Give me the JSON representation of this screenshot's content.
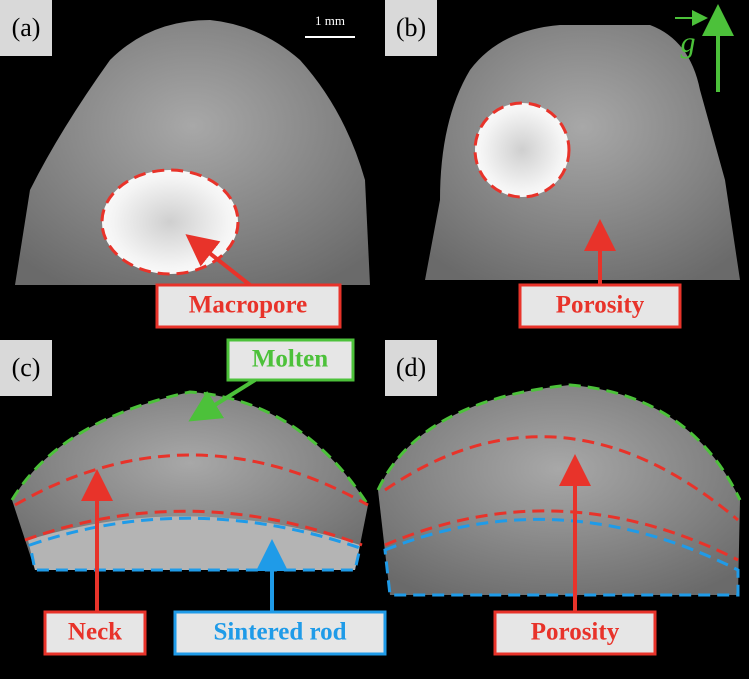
{
  "panels": [
    {
      "label": "(a)",
      "annotations": [
        "Macropore"
      ]
    },
    {
      "label": "(b)",
      "annotations": [
        "Porosity"
      ]
    },
    {
      "label": "(c)",
      "annotations": [
        "Molten",
        "Neck",
        "Sintered rod"
      ]
    },
    {
      "label": "(d)",
      "annotations": [
        "Porosity"
      ]
    }
  ],
  "scale_bar": "1 mm",
  "gravity_label": "g"
}
